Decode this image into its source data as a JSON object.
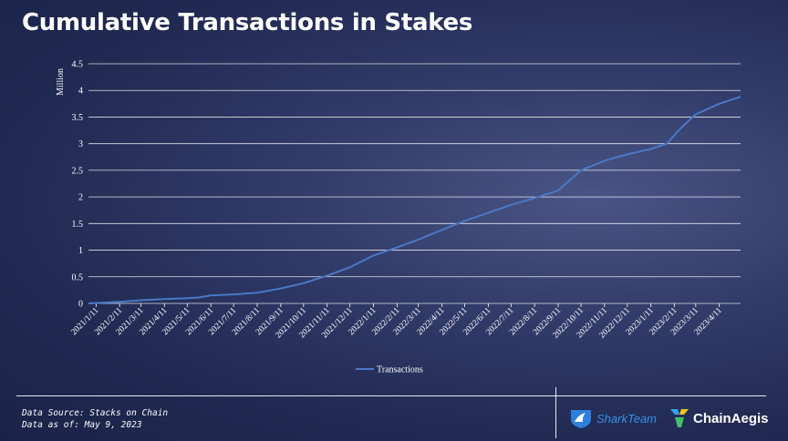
{
  "title": "Cumulative Transactions in Stakes",
  "footer": {
    "source": "Data Source: Stacks on Chain",
    "as_of": "Data as of: May 9, 2023"
  },
  "logos": {
    "shark": {
      "text": "SharkTeam",
      "icon": "shark-fin-icon",
      "color": "#3a8fe8"
    },
    "chainaegis": {
      "text": "ChainAegis",
      "icon": "chainaegis-icon"
    }
  },
  "colors": {
    "line": "#4a78c8",
    "grid": "#ffffff",
    "text": "#ffffff"
  },
  "chart_data": {
    "type": "line",
    "title": "",
    "ylabel": "Million",
    "xlabel": "",
    "ylim": [
      0,
      4.5
    ],
    "yticks": [
      "0",
      "0.5",
      "1",
      "1.5",
      "2",
      "2.5",
      "3",
      "3.5",
      "4",
      "4.5"
    ],
    "grid": true,
    "legend_position": "bottom",
    "categories": [
      "2021/1/11",
      "2021/2/11",
      "2021/3/11",
      "2021/4/11",
      "2021/5/11",
      "2021/6/11",
      "2021/7/11",
      "2021/8/11",
      "2021/9/11",
      "2021/10/11",
      "2021/11/11",
      "2021/12/11",
      "2022/1/11",
      "2022/2/11",
      "2022/3/11",
      "2022/4/11",
      "2022/5/11",
      "2022/6/11",
      "2022/7/11",
      "2022/8/11",
      "2022/9/11",
      "2022/10/11",
      "2022/11/11",
      "2022/12/11",
      "2023/1/11",
      "2023/2/11",
      "2023/3/11",
      "2023/4/11"
    ],
    "series": [
      {
        "name": "Transactions",
        "x": [
          "2021/1/1",
          "2021/2/11",
          "2021/3/11",
          "2021/4/11",
          "2021/5/11",
          "2021/5/25",
          "2021/6/11",
          "2021/7/11",
          "2021/8/11",
          "2021/9/11",
          "2021/10/11",
          "2021/11/11",
          "2021/12/11",
          "2022/1/11",
          "2022/2/11",
          "2022/3/11",
          "2022/4/11",
          "2022/5/11",
          "2022/6/11",
          "2022/7/11",
          "2022/8/11",
          "2022/9/11",
          "2022/10/11",
          "2022/11/11",
          "2022/12/11",
          "2023/1/11",
          "2023/2/1",
          "2023/2/20",
          "2023/3/11",
          "2023/4/11",
          "2023/5/9"
        ],
        "values": [
          0,
          0.03,
          0.06,
          0.08,
          0.1,
          0.11,
          0.15,
          0.17,
          0.2,
          0.28,
          0.38,
          0.52,
          0.68,
          0.9,
          1.05,
          1.2,
          1.38,
          1.55,
          1.7,
          1.85,
          1.98,
          2.12,
          2.5,
          2.68,
          2.8,
          2.9,
          3.0,
          3.3,
          3.55,
          3.75,
          3.88
        ]
      }
    ]
  }
}
